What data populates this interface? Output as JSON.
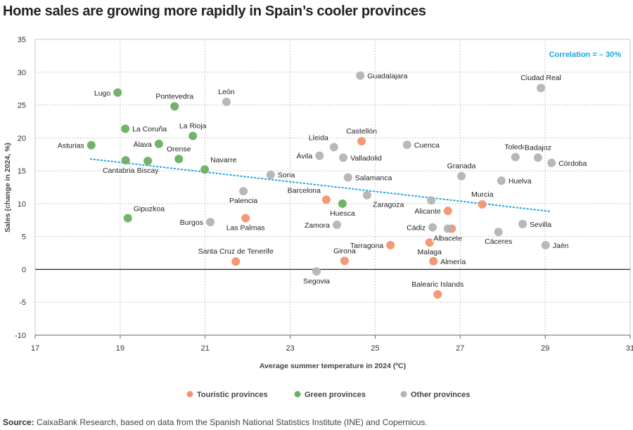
{
  "chart_data": {
    "type": "scatter",
    "title": "Home sales are growing more rapidly in Spain’s cooler provinces",
    "xlabel": "Average summer temperature in 2024 (ºC)",
    "ylabel": "Sales (change in 2024, %)",
    "xlim": [
      17,
      31
    ],
    "ylim": [
      -10,
      35
    ],
    "xticks": [
      17,
      19,
      21,
      23,
      25,
      27,
      29,
      31
    ],
    "yticks": [
      -10,
      -5,
      0,
      5,
      10,
      15,
      20,
      25,
      30,
      35
    ],
    "grid": true,
    "legend_placement": "bottom",
    "annotation": "Correlation = – 30%",
    "trendline": {
      "x": [
        18.3,
        29.15
      ],
      "y": [
        16.8,
        8.8
      ]
    },
    "colors": {
      "touristic": "#F2936F",
      "green": "#6BAE63",
      "other": "#B4B4B4",
      "trend": "#1BA6E0"
    },
    "series": [
      {
        "name": "Touristic provinces",
        "key": "touristic",
        "points": [
          {
            "label": "Castellón",
            "x": 24.68,
            "y": 19.5,
            "pos": "above"
          },
          {
            "label": "Barcelona",
            "x": 23.85,
            "y": 10.6,
            "pos": "above-left"
          },
          {
            "label": "Las Palmas",
            "x": 21.95,
            "y": 7.8,
            "pos": "below"
          },
          {
            "label": "Alicante",
            "x": 26.71,
            "y": 8.9,
            "pos": "left"
          },
          {
            "label": "Murcia",
            "x": 27.52,
            "y": 9.9,
            "pos": "above"
          },
          {
            "label": "",
            "x": 26.8,
            "y": 6.2,
            "pos": "none"
          },
          {
            "label": "Tarragona",
            "x": 25.36,
            "y": 3.7,
            "pos": "left"
          },
          {
            "label": "Malaga",
            "x": 26.28,
            "y": 4.1,
            "pos": "below"
          },
          {
            "label": "Girona",
            "x": 24.28,
            "y": 1.3,
            "pos": "above"
          },
          {
            "label": "Almería",
            "x": 26.37,
            "y": 1.25,
            "pos": "right"
          },
          {
            "label": "Santa Cruz de Tenerife",
            "x": 21.72,
            "y": 1.2,
            "pos": "above"
          },
          {
            "label": "Balearic Islands",
            "x": 26.47,
            "y": -3.8,
            "pos": "above"
          }
        ]
      },
      {
        "name": "Green provinces",
        "key": "green",
        "points": [
          {
            "label": "Lugo",
            "x": 18.94,
            "y": 26.9,
            "pos": "left"
          },
          {
            "label": "Pontevedra",
            "x": 20.28,
            "y": 24.8,
            "pos": "above"
          },
          {
            "label": "La Coruña",
            "x": 19.12,
            "y": 21.4,
            "pos": "right"
          },
          {
            "label": "La Rioja",
            "x": 20.71,
            "y": 20.3,
            "pos": "above"
          },
          {
            "label": "Asturias",
            "x": 18.32,
            "y": 18.9,
            "pos": "left"
          },
          {
            "label": "Álava",
            "x": 19.91,
            "y": 19.1,
            "pos": "left"
          },
          {
            "label": "Orense",
            "x": 20.38,
            "y": 16.8,
            "pos": "above"
          },
          {
            "label": "Cantabria",
            "x": 19.13,
            "y": 16.6,
            "pos": "below-left"
          },
          {
            "label": "Biscay",
            "x": 19.65,
            "y": 16.5,
            "pos": "below"
          },
          {
            "label": "Navarre",
            "x": 20.99,
            "y": 15.2,
            "pos": "above-right"
          },
          {
            "label": "Gipuzkoa",
            "x": 19.18,
            "y": 7.8,
            "pos": "above-right"
          },
          {
            "label": "Huesca",
            "x": 24.23,
            "y": 10.0,
            "pos": "below"
          }
        ]
      },
      {
        "name": "Other provinces",
        "key": "other",
        "points": [
          {
            "label": "León",
            "x": 21.5,
            "y": 25.5,
            "pos": "above"
          },
          {
            "label": "Guadalajara",
            "x": 24.65,
            "y": 29.5,
            "pos": "right"
          },
          {
            "label": "Ciudad Real",
            "x": 28.9,
            "y": 27.6,
            "pos": "above"
          },
          {
            "label": "Lleida",
            "x": 24.03,
            "y": 18.6,
            "pos": "above-left"
          },
          {
            "label": "Ávila",
            "x": 23.69,
            "y": 17.3,
            "pos": "left"
          },
          {
            "label": "Valladolid",
            "x": 24.25,
            "y": 17.0,
            "pos": "right"
          },
          {
            "label": "Cuenca",
            "x": 25.75,
            "y": 18.95,
            "pos": "right"
          },
          {
            "label": "Toledo",
            "x": 28.3,
            "y": 17.1,
            "pos": "above"
          },
          {
            "label": "Badajoz",
            "x": 28.83,
            "y": 17.0,
            "pos": "above"
          },
          {
            "label": "Córdoba",
            "x": 29.15,
            "y": 16.2,
            "pos": "right"
          },
          {
            "label": "Soria",
            "x": 22.54,
            "y": 14.4,
            "pos": "right"
          },
          {
            "label": "Salamanca",
            "x": 24.36,
            "y": 14.0,
            "pos": "right"
          },
          {
            "label": "Granada",
            "x": 27.03,
            "y": 14.2,
            "pos": "above"
          },
          {
            "label": "Huelva",
            "x": 27.97,
            "y": 13.5,
            "pos": "right"
          },
          {
            "label": "Palencia",
            "x": 21.9,
            "y": 11.9,
            "pos": "below"
          },
          {
            "label": "Zaragoza",
            "x": 24.81,
            "y": 11.3,
            "pos": "below-right"
          },
          {
            "label": "",
            "x": 26.32,
            "y": 10.5,
            "pos": "none"
          },
          {
            "label": "Burgos",
            "x": 21.12,
            "y": 7.2,
            "pos": "left"
          },
          {
            "label": "Zamora",
            "x": 24.1,
            "y": 6.8,
            "pos": "left"
          },
          {
            "label": "Cádiz",
            "x": 26.35,
            "y": 6.4,
            "pos": "left"
          },
          {
            "label": "Albacete",
            "x": 26.71,
            "y": 6.2,
            "pos": "below"
          },
          {
            "label": "Cáceres",
            "x": 27.9,
            "y": 5.7,
            "pos": "below"
          },
          {
            "label": "Sevilla",
            "x": 28.47,
            "y": 6.9,
            "pos": "right"
          },
          {
            "label": "Jaén",
            "x": 29.01,
            "y": 3.7,
            "pos": "right"
          },
          {
            "label": "Segovia",
            "x": 23.62,
            "y": -0.3,
            "pos": "below"
          }
        ]
      }
    ]
  },
  "source": {
    "label": "Source:",
    "text": " CaixaBank Research, based on data from the Spanish National Statistics Institute (INE) and Copernicus."
  }
}
